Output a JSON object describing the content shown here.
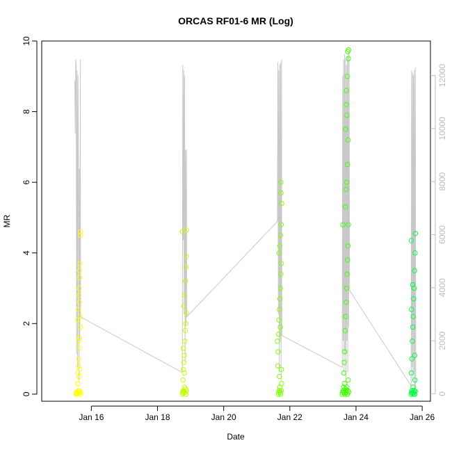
{
  "chart_data": {
    "type": "scatter",
    "title": "ORCAS RF01-6 MR (Log)",
    "xlabel": "Date",
    "ylabel": "MR",
    "x_axis": {
      "min": "2016-01-14T12:00",
      "max": "2016-01-26T06:00",
      "ticks": [
        {
          "value": "2016-01-16",
          "label": "Jan 16"
        },
        {
          "value": "2016-01-18",
          "label": "Jan 18"
        },
        {
          "value": "2016-01-20",
          "label": "Jan 20"
        },
        {
          "value": "2016-01-22",
          "label": "Jan 22"
        },
        {
          "value": "2016-01-24",
          "label": "Jan 24"
        },
        {
          "value": "2016-01-26",
          "label": "Jan 26"
        }
      ]
    },
    "y_axis": {
      "min": -0.2,
      "max": 10.0,
      "ticks": [
        0,
        2,
        4,
        6,
        8,
        10
      ]
    },
    "y2_axis": {
      "min": -280,
      "max": 13300,
      "ticks": [
        0,
        2000,
        4000,
        6000,
        8000,
        10000,
        12000
      ],
      "color": "#bbbbbb"
    },
    "grid": false,
    "secondary_series": {
      "color": "#c8c8c8",
      "points": [
        [
          "2016-01-15T12:00",
          11800
        ],
        [
          "2016-01-15T12:20",
          9800
        ],
        [
          "2016-01-15T12:40",
          12600
        ],
        [
          "2016-01-15T13:00",
          12400
        ],
        [
          "2016-01-15T13:20",
          1500
        ],
        [
          "2016-01-15T13:40",
          12200
        ],
        [
          "2016-01-15T14:00",
          1000
        ],
        [
          "2016-01-15T14:20",
          12000
        ],
        [
          "2016-01-15T14:40",
          8200
        ],
        [
          "2016-01-15T15:00",
          500
        ],
        [
          "2016-01-15T15:20",
          8500
        ],
        [
          "2016-01-15T15:40",
          2000
        ],
        [
          "2016-01-15T16:00",
          12600
        ],
        [
          "2016-01-15T16:10",
          2900
        ],
        [
          "2016-01-18T18:00",
          800
        ],
        [
          "2016-01-18T18:20",
          12400
        ],
        [
          "2016-01-18T18:40",
          5800
        ],
        [
          "2016-01-18T19:00",
          12200
        ],
        [
          "2016-01-18T19:20",
          3000
        ],
        [
          "2016-01-18T19:40",
          12000
        ],
        [
          "2016-01-18T20:00",
          1200
        ],
        [
          "2016-01-18T20:20",
          9200
        ],
        [
          "2016-01-18T20:40",
          2600
        ],
        [
          "2016-01-18T21:00",
          9200
        ],
        [
          "2016-01-18T21:10",
          2900
        ],
        [
          "2016-01-21T15:00",
          6500
        ],
        [
          "2016-01-21T15:20",
          12500
        ],
        [
          "2016-01-21T15:40",
          3000
        ],
        [
          "2016-01-21T16:00",
          12200
        ],
        [
          "2016-01-21T16:20",
          800
        ],
        [
          "2016-01-21T16:40",
          12400
        ],
        [
          "2016-01-21T17:00",
          2000
        ],
        [
          "2016-01-21T17:20",
          12500
        ],
        [
          "2016-01-21T17:40",
          500
        ],
        [
          "2016-01-21T18:00",
          12600
        ],
        [
          "2016-01-21T18:10",
          2200
        ],
        [
          "2016-01-23T14:00",
          1000
        ],
        [
          "2016-01-23T14:20",
          12000
        ],
        [
          "2016-01-23T14:40",
          2000
        ],
        [
          "2016-01-23T15:00",
          12600
        ],
        [
          "2016-01-23T15:20",
          800
        ],
        [
          "2016-01-23T15:40",
          12800
        ],
        [
          "2016-01-23T16:00",
          1500
        ],
        [
          "2016-01-23T16:20",
          12600
        ],
        [
          "2016-01-23T16:40",
          600
        ],
        [
          "2016-01-23T17:00",
          12400
        ],
        [
          "2016-01-23T17:20",
          2000
        ],
        [
          "2016-01-23T17:40",
          12700
        ],
        [
          "2016-01-23T18:00",
          800
        ],
        [
          "2016-01-23T18:20",
          12800
        ],
        [
          "2016-01-23T18:40",
          2500
        ],
        [
          "2016-01-23T19:00",
          12900
        ],
        [
          "2016-01-23T19:20",
          3900
        ],
        [
          "2016-01-25T16:00",
          300
        ],
        [
          "2016-01-25T16:20",
          12200
        ],
        [
          "2016-01-25T16:40",
          1000
        ],
        [
          "2016-01-25T17:00",
          12100
        ],
        [
          "2016-01-25T17:20",
          500
        ],
        [
          "2016-01-25T17:40",
          12000
        ],
        [
          "2016-01-25T18:00",
          800
        ],
        [
          "2016-01-25T18:20",
          12200
        ],
        [
          "2016-01-25T18:40",
          200
        ],
        [
          "2016-01-25T19:00",
          12300
        ],
        [
          "2016-01-25T19:20",
          100
        ]
      ]
    },
    "flights": [
      {
        "color": "#ffff00",
        "points": [
          [
            "2016-01-15T13:00",
            0.0
          ],
          [
            "2016-01-15T13:10",
            0.05
          ],
          [
            "2016-01-15T13:30",
            0.02
          ],
          [
            "2016-01-15T14:00",
            0.08
          ],
          [
            "2016-01-15T14:30",
            0.03
          ],
          [
            "2016-01-15T15:00",
            0.1
          ],
          [
            "2016-01-15T15:30",
            0.04
          ],
          [
            "2016-01-15T16:00",
            0.0
          ],
          [
            "2016-01-15T16:10",
            0.06
          ],
          [
            "2016-01-15T14:10",
            0.3
          ],
          [
            "2016-01-15T14:20",
            0.6
          ],
          [
            "2016-01-15T14:40",
            0.8
          ],
          [
            "2016-01-15T14:50",
            1.0
          ],
          [
            "2016-01-15T15:10",
            1.3
          ],
          [
            "2016-01-15T15:20",
            1.6
          ],
          [
            "2016-01-15T15:40",
            0.7
          ],
          [
            "2016-01-15T15:50",
            1.9
          ],
          [
            "2016-01-15T14:15",
            2.1
          ],
          [
            "2016-01-15T14:35",
            2.4
          ],
          [
            "2016-01-15T14:55",
            2.8
          ],
          [
            "2016-01-15T15:15",
            3.0
          ],
          [
            "2016-01-15T15:25",
            3.3
          ],
          [
            "2016-01-15T15:35",
            3.5
          ],
          [
            "2016-01-15T15:45",
            3.7
          ],
          [
            "2016-01-15T15:55",
            2.2
          ],
          [
            "2016-01-15T16:05",
            4.5
          ],
          [
            "2016-01-15T16:00",
            4.6
          ],
          [
            "2016-01-15T15:05",
            0.5
          ],
          [
            "2016-01-15T14:45",
            1.5
          ],
          [
            "2016-01-15T15:30",
            2.6
          ]
        ]
      },
      {
        "color": "#bfff00",
        "points": [
          [
            "2016-01-18T18:00",
            0.0
          ],
          [
            "2016-01-18T18:20",
            0.05
          ],
          [
            "2016-01-18T18:40",
            0.1
          ],
          [
            "2016-01-18T19:00",
            0.03
          ],
          [
            "2016-01-18T19:20",
            0.08
          ],
          [
            "2016-01-18T19:40",
            0.2
          ],
          [
            "2016-01-18T20:00",
            0.05
          ],
          [
            "2016-01-18T20:20",
            0.15
          ],
          [
            "2016-01-18T20:40",
            0.0
          ],
          [
            "2016-01-18T21:00",
            0.1
          ],
          [
            "2016-01-18T18:30",
            0.4
          ],
          [
            "2016-01-18T18:50",
            0.7
          ],
          [
            "2016-01-18T19:10",
            0.9
          ],
          [
            "2016-01-18T19:30",
            1.1
          ],
          [
            "2016-01-18T19:50",
            1.5
          ],
          [
            "2016-01-18T20:10",
            1.8
          ],
          [
            "2016-01-18T20:30",
            2.0
          ],
          [
            "2016-01-18T20:50",
            2.3
          ],
          [
            "2016-01-18T19:05",
            2.5
          ],
          [
            "2016-01-18T19:45",
            2.8
          ],
          [
            "2016-01-18T20:15",
            3.2
          ],
          [
            "2016-01-18T20:35",
            3.6
          ],
          [
            "2016-01-18T20:55",
            3.9
          ],
          [
            "2016-01-18T18:10",
            4.6
          ],
          [
            "2016-01-18T21:05",
            4.65
          ],
          [
            "2016-01-18T18:45",
            1.3
          ],
          [
            "2016-01-18T19:25",
            0.6
          ]
        ]
      },
      {
        "color": "#80ff00",
        "points": [
          [
            "2016-01-21T15:00",
            1.5
          ],
          [
            "2016-01-21T15:20",
            0.8
          ],
          [
            "2016-01-21T15:40",
            0.0
          ],
          [
            "2016-01-21T16:00",
            0.05
          ],
          [
            "2016-01-21T16:20",
            0.1
          ],
          [
            "2016-01-21T16:40",
            0.2
          ],
          [
            "2016-01-21T17:00",
            0.05
          ],
          [
            "2016-01-21T17:20",
            0.0
          ],
          [
            "2016-01-21T17:40",
            0.1
          ],
          [
            "2016-01-21T18:00",
            0.3
          ],
          [
            "2016-01-21T15:30",
            1.2
          ],
          [
            "2016-01-21T15:50",
            1.7
          ],
          [
            "2016-01-21T16:10",
            2.1
          ],
          [
            "2016-01-21T16:30",
            2.4
          ],
          [
            "2016-01-21T16:50",
            2.7
          ],
          [
            "2016-01-21T17:10",
            3.0
          ],
          [
            "2016-01-21T17:30",
            3.4
          ],
          [
            "2016-01-21T17:50",
            3.7
          ],
          [
            "2016-01-21T16:15",
            4.0
          ],
          [
            "2016-01-21T16:45",
            4.2
          ],
          [
            "2016-01-21T17:15",
            4.5
          ],
          [
            "2016-01-21T17:45",
            4.8
          ],
          [
            "2016-01-21T18:05",
            5.4
          ],
          [
            "2016-01-21T17:35",
            5.7
          ],
          [
            "2016-01-21T17:25",
            6.0
          ],
          [
            "2016-01-21T16:25",
            0.5
          ],
          [
            "2016-01-21T17:05",
            1.9
          ],
          [
            "2016-01-21T17:55",
            0.7
          ]
        ]
      },
      {
        "color": "#40ff00",
        "points": [
          [
            "2016-01-23T14:00",
            0.0
          ],
          [
            "2016-01-23T14:20",
            0.05
          ],
          [
            "2016-01-23T14:40",
            0.1
          ],
          [
            "2016-01-23T15:00",
            0.2
          ],
          [
            "2016-01-23T15:20",
            0.05
          ],
          [
            "2016-01-23T15:40",
            0.3
          ],
          [
            "2016-01-23T16:00",
            0.0
          ],
          [
            "2016-01-23T16:20",
            0.15
          ],
          [
            "2016-01-23T16:40",
            0.1
          ],
          [
            "2016-01-23T17:00",
            0.05
          ],
          [
            "2016-01-23T17:20",
            0.2
          ],
          [
            "2016-01-23T17:40",
            0.0
          ],
          [
            "2016-01-23T18:00",
            0.1
          ],
          [
            "2016-01-23T18:20",
            0.4
          ],
          [
            "2016-01-23T18:40",
            0.06
          ],
          [
            "2016-01-23T15:10",
            0.6
          ],
          [
            "2016-01-23T15:30",
            0.9
          ],
          [
            "2016-01-23T15:50",
            1.2
          ],
          [
            "2016-01-23T16:10",
            1.8
          ],
          [
            "2016-01-23T16:30",
            2.2
          ],
          [
            "2016-01-23T16:50",
            2.6
          ],
          [
            "2016-01-23T17:10",
            3.0
          ],
          [
            "2016-01-23T17:30",
            3.4
          ],
          [
            "2016-01-23T17:50",
            3.8
          ],
          [
            "2016-01-23T18:10",
            4.2
          ],
          [
            "2016-01-23T18:30",
            4.8
          ],
          [
            "2016-01-23T14:30",
            4.8
          ],
          [
            "2016-01-23T16:15",
            5.3
          ],
          [
            "2016-01-23T16:45",
            5.8
          ],
          [
            "2016-01-23T17:15",
            6.0
          ],
          [
            "2016-01-23T17:45",
            6.5
          ],
          [
            "2016-01-23T18:15",
            7.2
          ],
          [
            "2016-01-23T16:25",
            7.5
          ],
          [
            "2016-01-23T17:25",
            7.9
          ],
          [
            "2016-01-23T17:05",
            8.2
          ],
          [
            "2016-01-23T16:55",
            8.6
          ],
          [
            "2016-01-23T17:35",
            9.0
          ],
          [
            "2016-01-23T18:25",
            9.5
          ],
          [
            "2016-01-23T17:55",
            9.7
          ],
          [
            "2016-01-23T18:35",
            9.75
          ]
        ]
      },
      {
        "color": "#00ff40",
        "points": [
          [
            "2016-01-25T16:00",
            0.0
          ],
          [
            "2016-01-25T16:20",
            0.05
          ],
          [
            "2016-01-25T16:40",
            0.1
          ],
          [
            "2016-01-25T17:00",
            0.03
          ],
          [
            "2016-01-25T17:20",
            0.2
          ],
          [
            "2016-01-25T17:40",
            0.0
          ],
          [
            "2016-01-25T18:00",
            0.05
          ],
          [
            "2016-01-25T18:20",
            0.1
          ],
          [
            "2016-01-25T18:40",
            0.0
          ],
          [
            "2016-01-25T19:00",
            0.08
          ],
          [
            "2016-01-25T16:10",
            0.6
          ],
          [
            "2016-01-25T16:30",
            1.0
          ],
          [
            "2016-01-25T16:50",
            1.5
          ],
          [
            "2016-01-25T17:10",
            1.9
          ],
          [
            "2016-01-25T17:30",
            2.2
          ],
          [
            "2016-01-25T17:50",
            2.7
          ],
          [
            "2016-01-25T18:10",
            3.0
          ],
          [
            "2016-01-25T18:30",
            3.5
          ],
          [
            "2016-01-25T18:50",
            4.0
          ],
          [
            "2016-01-25T16:05",
            4.35
          ],
          [
            "2016-01-25T19:05",
            4.55
          ],
          [
            "2016-01-25T17:05",
            3.1
          ],
          [
            "2016-01-25T18:45",
            0.4
          ],
          [
            "2016-01-25T16:15",
            2.4
          ],
          [
            "2016-01-25T18:35",
            1.1
          ]
        ]
      }
    ]
  }
}
